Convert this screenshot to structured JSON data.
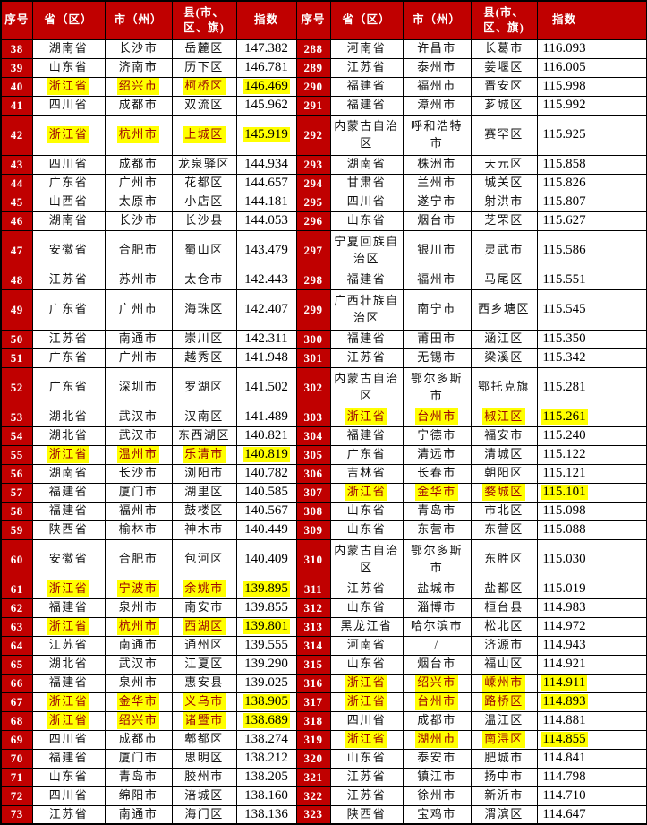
{
  "colors": {
    "header_red": "#C00000",
    "highlight_yellow": "#FFFF00",
    "highlight_text_red": "#9C0006",
    "header_text": "#FFFFFF",
    "body_text": "#000000",
    "border": "#000000"
  },
  "table": {
    "headers": [
      "序号",
      "省（区）",
      "市（州）",
      "县(市、区、旗)",
      "指数",
      "序号",
      "省（区）",
      "市（州）",
      "县(市、区、旗)",
      "指数",
      ""
    ],
    "rows": [
      {
        "tall": false,
        "left": {
          "no": "38",
          "province": "湖南省",
          "city": "长沙市",
          "county": "岳麓区",
          "index": "147.382",
          "highlight": false
        },
        "right": {
          "no": "288",
          "province": "河南省",
          "city": "许昌市",
          "county": "长葛市",
          "index": "116.093",
          "highlight": false
        }
      },
      {
        "tall": false,
        "left": {
          "no": "39",
          "province": "山东省",
          "city": "济南市",
          "county": "历下区",
          "index": "146.781",
          "highlight": false
        },
        "right": {
          "no": "289",
          "province": "江苏省",
          "city": "泰州市",
          "county": "姜堰区",
          "index": "116.005",
          "highlight": false
        }
      },
      {
        "tall": false,
        "left": {
          "no": "40",
          "province": "浙江省",
          "city": "绍兴市",
          "county": "柯桥区",
          "index": "146.469",
          "highlight": true
        },
        "right": {
          "no": "290",
          "province": "福建省",
          "city": "福州市",
          "county": "晋安区",
          "index": "115.998",
          "highlight": false
        }
      },
      {
        "tall": false,
        "left": {
          "no": "41",
          "province": "四川省",
          "city": "成都市",
          "county": "双流区",
          "index": "145.962",
          "highlight": false
        },
        "right": {
          "no": "291",
          "province": "福建省",
          "city": "漳州市",
          "county": "芗城区",
          "index": "115.992",
          "highlight": false
        }
      },
      {
        "tall": true,
        "left": {
          "no": "42",
          "province": "浙江省",
          "city": "杭州市",
          "county": "上城区",
          "index": "145.919",
          "highlight": true
        },
        "right": {
          "no": "292",
          "province": "内蒙古自治区",
          "city": "呼和浩特市",
          "county": "赛罕区",
          "index": "115.925",
          "highlight": false
        }
      },
      {
        "tall": false,
        "left": {
          "no": "43",
          "province": "四川省",
          "city": "成都市",
          "county": "龙泉驿区",
          "index": "144.934",
          "highlight": false
        },
        "right": {
          "no": "293",
          "province": "湖南省",
          "city": "株洲市",
          "county": "天元区",
          "index": "115.858",
          "highlight": false
        }
      },
      {
        "tall": false,
        "left": {
          "no": "44",
          "province": "广东省",
          "city": "广州市",
          "county": "花都区",
          "index": "144.657",
          "highlight": false
        },
        "right": {
          "no": "294",
          "province": "甘肃省",
          "city": "兰州市",
          "county": "城关区",
          "index": "115.826",
          "highlight": false
        }
      },
      {
        "tall": false,
        "left": {
          "no": "45",
          "province": "山西省",
          "city": "太原市",
          "county": "小店区",
          "index": "144.181",
          "highlight": false
        },
        "right": {
          "no": "295",
          "province": "四川省",
          "city": "遂宁市",
          "county": "射洪市",
          "index": "115.807",
          "highlight": false
        }
      },
      {
        "tall": false,
        "left": {
          "no": "46",
          "province": "湖南省",
          "city": "长沙市",
          "county": "长沙县",
          "index": "144.053",
          "highlight": false
        },
        "right": {
          "no": "296",
          "province": "山东省",
          "city": "烟台市",
          "county": "芝罘区",
          "index": "115.627",
          "highlight": false
        }
      },
      {
        "tall": true,
        "left": {
          "no": "47",
          "province": "安徽省",
          "city": "合肥市",
          "county": "蜀山区",
          "index": "143.479",
          "highlight": false
        },
        "right": {
          "no": "297",
          "province": "宁夏回族自治区",
          "city": "银川市",
          "county": "灵武市",
          "index": "115.586",
          "highlight": false
        }
      },
      {
        "tall": false,
        "left": {
          "no": "48",
          "province": "江苏省",
          "city": "苏州市",
          "county": "太仓市",
          "index": "142.443",
          "highlight": false
        },
        "right": {
          "no": "298",
          "province": "福建省",
          "city": "福州市",
          "county": "马尾区",
          "index": "115.551",
          "highlight": false
        }
      },
      {
        "tall": true,
        "left": {
          "no": "49",
          "province": "广东省",
          "city": "广州市",
          "county": "海珠区",
          "index": "142.407",
          "highlight": false
        },
        "right": {
          "no": "299",
          "province": "广西壮族自治区",
          "city": "南宁市",
          "county": "西乡塘区",
          "index": "115.545",
          "highlight": false
        }
      },
      {
        "tall": false,
        "left": {
          "no": "50",
          "province": "江苏省",
          "city": "南通市",
          "county": "崇川区",
          "index": "142.311",
          "highlight": false
        },
        "right": {
          "no": "300",
          "province": "福建省",
          "city": "莆田市",
          "county": "涵江区",
          "index": "115.350",
          "highlight": false
        }
      },
      {
        "tall": false,
        "left": {
          "no": "51",
          "province": "广东省",
          "city": "广州市",
          "county": "越秀区",
          "index": "141.948",
          "highlight": false
        },
        "right": {
          "no": "301",
          "province": "江苏省",
          "city": "无锡市",
          "county": "梁溪区",
          "index": "115.342",
          "highlight": false
        }
      },
      {
        "tall": true,
        "left": {
          "no": "52",
          "province": "广东省",
          "city": "深圳市",
          "county": "罗湖区",
          "index": "141.502",
          "highlight": false
        },
        "right": {
          "no": "302",
          "province": "内蒙古自治区",
          "city": "鄂尔多斯市",
          "county": "鄂托克旗",
          "index": "115.281",
          "highlight": false
        }
      },
      {
        "tall": false,
        "left": {
          "no": "53",
          "province": "湖北省",
          "city": "武汉市",
          "county": "汉南区",
          "index": "141.489",
          "highlight": false
        },
        "right": {
          "no": "303",
          "province": "浙江省",
          "city": "台州市",
          "county": "椒江区",
          "index": "115.261",
          "highlight": true
        }
      },
      {
        "tall": false,
        "left": {
          "no": "54",
          "province": "湖北省",
          "city": "武汉市",
          "county": "东西湖区",
          "index": "140.821",
          "highlight": false
        },
        "right": {
          "no": "304",
          "province": "福建省",
          "city": "宁德市",
          "county": "福安市",
          "index": "115.240",
          "highlight": false
        }
      },
      {
        "tall": false,
        "left": {
          "no": "55",
          "province": "浙江省",
          "city": "温州市",
          "county": "乐清市",
          "index": "140.819",
          "highlight": true
        },
        "right": {
          "no": "305",
          "province": "广东省",
          "city": "清远市",
          "county": "清城区",
          "index": "115.122",
          "highlight": false
        }
      },
      {
        "tall": false,
        "left": {
          "no": "56",
          "province": "湖南省",
          "city": "长沙市",
          "county": "浏阳市",
          "index": "140.782",
          "highlight": false
        },
        "right": {
          "no": "306",
          "province": "吉林省",
          "city": "长春市",
          "county": "朝阳区",
          "index": "115.121",
          "highlight": false
        }
      },
      {
        "tall": false,
        "left": {
          "no": "57",
          "province": "福建省",
          "city": "厦门市",
          "county": "湖里区",
          "index": "140.585",
          "highlight": false
        },
        "right": {
          "no": "307",
          "province": "浙江省",
          "city": "金华市",
          "county": "婺城区",
          "index": "115.101",
          "highlight": true
        }
      },
      {
        "tall": false,
        "left": {
          "no": "58",
          "province": "福建省",
          "city": "福州市",
          "county": "鼓楼区",
          "index": "140.567",
          "highlight": false
        },
        "right": {
          "no": "308",
          "province": "山东省",
          "city": "青岛市",
          "county": "市北区",
          "index": "115.098",
          "highlight": false
        }
      },
      {
        "tall": false,
        "left": {
          "no": "59",
          "province": "陕西省",
          "city": "榆林市",
          "county": "神木市",
          "index": "140.449",
          "highlight": false
        },
        "right": {
          "no": "309",
          "province": "山东省",
          "city": "东营市",
          "county": "东营区",
          "index": "115.088",
          "highlight": false
        }
      },
      {
        "tall": true,
        "left": {
          "no": "60",
          "province": "安徽省",
          "city": "合肥市",
          "county": "包河区",
          "index": "140.409",
          "highlight": false
        },
        "right": {
          "no": "310",
          "province": "内蒙古自治区",
          "city": "鄂尔多斯市",
          "county": "东胜区",
          "index": "115.030",
          "highlight": false
        }
      },
      {
        "tall": false,
        "left": {
          "no": "61",
          "province": "浙江省",
          "city": "宁波市",
          "county": "余姚市",
          "index": "139.895",
          "highlight": true
        },
        "right": {
          "no": "311",
          "province": "江苏省",
          "city": "盐城市",
          "county": "盐都区",
          "index": "115.019",
          "highlight": false
        }
      },
      {
        "tall": false,
        "left": {
          "no": "62",
          "province": "福建省",
          "city": "泉州市",
          "county": "南安市",
          "index": "139.855",
          "highlight": false
        },
        "right": {
          "no": "312",
          "province": "山东省",
          "city": "淄博市",
          "county": "桓台县",
          "index": "114.983",
          "highlight": false
        }
      },
      {
        "tall": false,
        "left": {
          "no": "63",
          "province": "浙江省",
          "city": "杭州市",
          "county": "西湖区",
          "index": "139.801",
          "highlight": true
        },
        "right": {
          "no": "313",
          "province": "黑龙江省",
          "city": "哈尔滨市",
          "county": "松北区",
          "index": "114.972",
          "highlight": false
        }
      },
      {
        "tall": false,
        "left": {
          "no": "64",
          "province": "江苏省",
          "city": "南通市",
          "county": "通州区",
          "index": "139.555",
          "highlight": false
        },
        "right": {
          "no": "314",
          "province": "河南省",
          "city": "/",
          "county": "济源市",
          "index": "114.943",
          "highlight": false
        }
      },
      {
        "tall": false,
        "left": {
          "no": "65",
          "province": "湖北省",
          "city": "武汉市",
          "county": "江夏区",
          "index": "139.290",
          "highlight": false
        },
        "right": {
          "no": "315",
          "province": "山东省",
          "city": "烟台市",
          "county": "福山区",
          "index": "114.921",
          "highlight": false
        }
      },
      {
        "tall": false,
        "left": {
          "no": "66",
          "province": "福建省",
          "city": "泉州市",
          "county": "惠安县",
          "index": "139.025",
          "highlight": false
        },
        "right": {
          "no": "316",
          "province": "浙江省",
          "city": "绍兴市",
          "county": "嵊州市",
          "index": "114.911",
          "highlight": true
        }
      },
      {
        "tall": false,
        "left": {
          "no": "67",
          "province": "浙江省",
          "city": "金华市",
          "county": "义乌市",
          "index": "138.905",
          "highlight": true
        },
        "right": {
          "no": "317",
          "province": "浙江省",
          "city": "台州市",
          "county": "路桥区",
          "index": "114.893",
          "highlight": true
        }
      },
      {
        "tall": false,
        "left": {
          "no": "68",
          "province": "浙江省",
          "city": "绍兴市",
          "county": "诸暨市",
          "index": "138.689",
          "highlight": true
        },
        "right": {
          "no": "318",
          "province": "四川省",
          "city": "成都市",
          "county": "温江区",
          "index": "114.881",
          "highlight": false
        }
      },
      {
        "tall": false,
        "left": {
          "no": "69",
          "province": "四川省",
          "city": "成都市",
          "county": "郫都区",
          "index": "138.274",
          "highlight": false
        },
        "right": {
          "no": "319",
          "province": "浙江省",
          "city": "湖州市",
          "county": "南浔区",
          "index": "114.855",
          "highlight": true
        }
      },
      {
        "tall": false,
        "left": {
          "no": "70",
          "province": "福建省",
          "city": "厦门市",
          "county": "思明区",
          "index": "138.212",
          "highlight": false
        },
        "right": {
          "no": "320",
          "province": "山东省",
          "city": "泰安市",
          "county": "肥城市",
          "index": "114.841",
          "highlight": false
        }
      },
      {
        "tall": false,
        "left": {
          "no": "71",
          "province": "山东省",
          "city": "青岛市",
          "county": "胶州市",
          "index": "138.205",
          "highlight": false
        },
        "right": {
          "no": "321",
          "province": "江苏省",
          "city": "镇江市",
          "county": "扬中市",
          "index": "114.798",
          "highlight": false
        }
      },
      {
        "tall": false,
        "left": {
          "no": "72",
          "province": "四川省",
          "city": "绵阳市",
          "county": "涪城区",
          "index": "138.160",
          "highlight": false
        },
        "right": {
          "no": "322",
          "province": "江苏省",
          "city": "徐州市",
          "county": "新沂市",
          "index": "114.710",
          "highlight": false
        }
      },
      {
        "tall": false,
        "left": {
          "no": "73",
          "province": "江苏省",
          "city": "南通市",
          "county": "海门区",
          "index": "138.136",
          "highlight": false
        },
        "right": {
          "no": "323",
          "province": "陕西省",
          "city": "宝鸡市",
          "county": "渭滨区",
          "index": "114.647",
          "highlight": false
        }
      }
    ]
  }
}
